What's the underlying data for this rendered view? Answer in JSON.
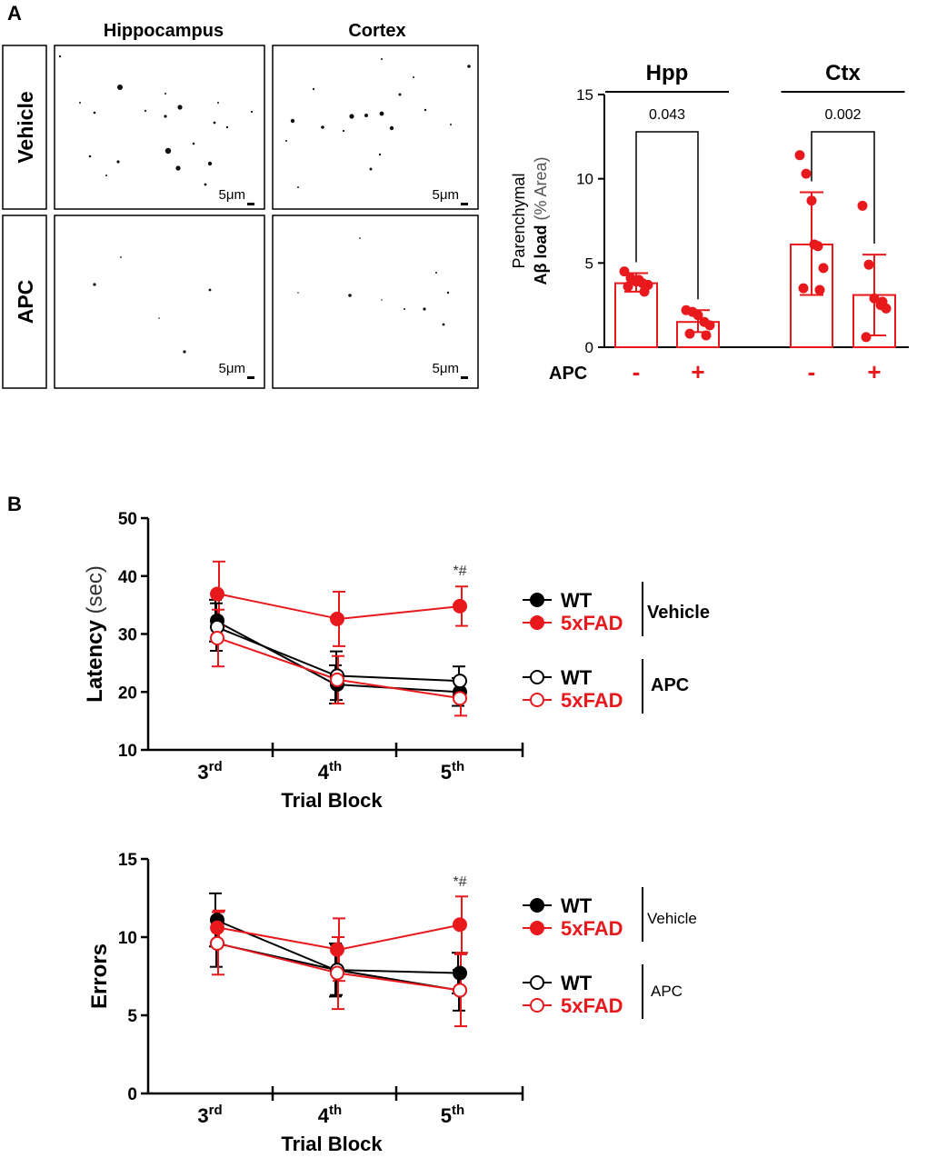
{
  "panels": {
    "a_label": "A",
    "b_label": "B"
  },
  "micrographs": {
    "columns": [
      "Hippocampus",
      "Cortex"
    ],
    "rows": [
      "Vehicle",
      "APC"
    ],
    "scale_bar": "5μm"
  },
  "colors": {
    "vehicle_5xfad": "#e8191d",
    "wt": "#000000",
    "apc_5xfad": "#e8191d"
  },
  "chart_data": [
    {
      "id": "amyloid_load",
      "type": "bar",
      "ylabel_line1": "Parenchymal",
      "ylabel_line2_bold": "Aβ load",
      "ylabel_line2_light": "(% Area)",
      "ylim": [
        0,
        15
      ],
      "yticks": [
        "0",
        "5",
        "10",
        "15"
      ],
      "xlabel": "APC",
      "groups": [
        {
          "name": "Hpp",
          "pvalue": "0.043",
          "bars": [
            {
              "apc": "-",
              "mean": 3.8,
              "sd_low": 3.3,
              "sd_high": 4.4,
              "points": [
                4.5,
                4.1,
                3.9,
                3.8,
                3.7,
                3.6,
                3.3,
                4.0
              ]
            },
            {
              "apc": "+",
              "mean": 1.5,
              "sd_low": 0.9,
              "sd_high": 2.2,
              "points": [
                2.2,
                2.1,
                1.9,
                1.5,
                1.3,
                0.8,
                0.7
              ]
            }
          ]
        },
        {
          "name": "Ctx",
          "pvalue": "0.002",
          "bars": [
            {
              "apc": "-",
              "mean": 6.1,
              "sd_low": 3.1,
              "sd_high": 9.2,
              "points": [
                11.4,
                10.3,
                8.7,
                6.0,
                4.7,
                3.5,
                3.4,
                6.1
              ]
            },
            {
              "apc": "+",
              "mean": 3.1,
              "sd_low": 0.7,
              "sd_high": 5.5,
              "points": [
                8.4,
                4.9,
                2.9,
                2.5,
                2.3,
                0.6,
                2.7
              ]
            }
          ]
        }
      ]
    },
    {
      "id": "latency",
      "type": "line",
      "ylabel_bold": "Latency",
      "ylabel_light": "(sec)",
      "ylim": [
        10,
        50
      ],
      "yticks": [
        "10",
        "20",
        "30",
        "40",
        "50"
      ],
      "xlabel": "Trial Block",
      "categories": [
        {
          "base": "3",
          "sup": "rd"
        },
        {
          "base": "4",
          "sup": "th"
        },
        {
          "base": "5",
          "sup": "th"
        }
      ],
      "annotation": "*#",
      "series": [
        {
          "name": "WT",
          "group": "Vehicle",
          "color": "#000000",
          "filled": true,
          "values": [
            32.3,
            21.3,
            20.0
          ],
          "err": [
            3.6,
            3.3,
            2.4
          ]
        },
        {
          "name": "5xFAD",
          "group": "Vehicle",
          "color": "#e8191d",
          "filled": true,
          "values": [
            36.9,
            32.6,
            34.8
          ],
          "err": [
            5.6,
            4.7,
            3.4
          ]
        },
        {
          "name": "WT",
          "group": "APC",
          "color": "#000000",
          "filled": false,
          "values": [
            31.2,
            22.8,
            21.9
          ],
          "err": [
            4.1,
            4.2,
            2.5
          ]
        },
        {
          "name": "5xFAD",
          "group": "APC",
          "color": "#e8191d",
          "filled": false,
          "values": [
            29.3,
            22.1,
            18.9
          ],
          "err": [
            4.9,
            4.1,
            3.0
          ]
        }
      ],
      "legend_groups": [
        "Vehicle",
        "APC"
      ]
    },
    {
      "id": "errors",
      "type": "line",
      "ylabel_bold": "Errors",
      "ylim": [
        0,
        15
      ],
      "yticks": [
        "0",
        "5",
        "10",
        "15"
      ],
      "xlabel": "Trial Block",
      "categories": [
        {
          "base": "3",
          "sup": "rd"
        },
        {
          "base": "4",
          "sup": "th"
        },
        {
          "base": "5",
          "sup": "th"
        }
      ],
      "annotation": "*#",
      "series": [
        {
          "name": "WT",
          "group": "Vehicle",
          "color": "#000000",
          "filled": true,
          "values": [
            11.1,
            7.9,
            7.7
          ],
          "err": [
            1.7,
            1.7,
            1.3
          ]
        },
        {
          "name": "5xFAD",
          "group": "Vehicle",
          "color": "#e8191d",
          "filled": true,
          "values": [
            10.6,
            9.2,
            10.8
          ],
          "err": [
            1.1,
            2.0,
            1.8
          ]
        },
        {
          "name": "WT",
          "group": "APC",
          "color": "#000000",
          "filled": false,
          "values": [
            9.6,
            7.9,
            6.6
          ],
          "err": [
            1.5,
            1.6,
            1.3
          ]
        },
        {
          "name": "5xFAD",
          "group": "APC",
          "color": "#e8191d",
          "filled": false,
          "values": [
            9.6,
            7.7,
            6.6
          ],
          "err": [
            2.0,
            2.3,
            2.3
          ]
        }
      ],
      "legend_groups": [
        "Vehicle",
        "APC"
      ]
    }
  ]
}
